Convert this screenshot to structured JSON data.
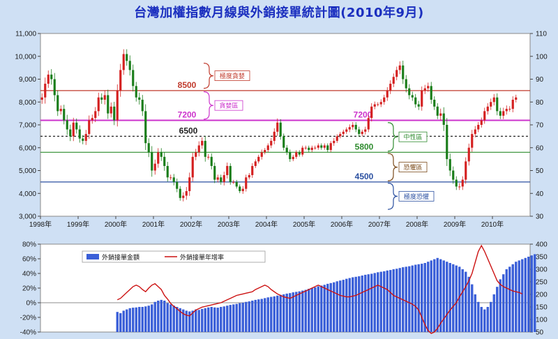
{
  "title": "台灣加權指數月線與外銷接單統計圖(2010年9月)",
  "colors": {
    "background": "#cfe0f4",
    "plot_bg": "#ffffff",
    "candle_up": "#d42020",
    "candle_down": "#1a7d1a",
    "bar": "#3a5fd8",
    "growth_line": "#cc1111",
    "level_8500": "#c0392b",
    "level_7200": "#cc33cc",
    "level_6500": "#222222",
    "level_5800": "#2e8b2e",
    "level_4500": "#2a4fa0",
    "title": "#1b2fbf"
  },
  "chart_data": [
    {
      "type": "candlestick",
      "title": "台灣加權指數月線與外銷接單統計圖(2010年9月)",
      "x_axis": {
        "type": "date",
        "range": [
          "1998-01",
          "2010-12"
        ],
        "tick_labels": [
          "1998年",
          "1999年",
          "2000年",
          "2001年",
          "2002年",
          "2003年",
          "2004年",
          "2005年",
          "2006年",
          "2007年",
          "2008年",
          "2009年",
          "2010年"
        ]
      },
      "y_left": {
        "range": [
          3000,
          11000
        ],
        "tick_labels": [
          "3,000",
          "4,000",
          "5,000",
          "6,000",
          "7,000",
          "8,000",
          "9,000",
          "10,000",
          "11,000"
        ]
      },
      "y_right": {
        "range": [
          30,
          110
        ],
        "tick_labels": [
          "30",
          "40",
          "50",
          "60",
          "70",
          "80",
          "90",
          "100",
          "110"
        ]
      },
      "series": [
        {
          "key": "month_close",
          "start": "1998-01",
          "values": [
            8200,
            8800,
            9200,
            9000,
            8300,
            7600,
            7700,
            7200,
            6800,
            6500,
            7100,
            6800,
            6400,
            6300,
            6600,
            7200,
            7300,
            7600,
            8200,
            8100,
            8300,
            7500,
            7800,
            7200,
            8500,
            9400,
            10100,
            9800,
            9400,
            8700,
            8200,
            8100,
            7600,
            6200,
            5800,
            5000,
            5300,
            5800,
            5600,
            5200,
            4700,
            4700,
            4500,
            4200,
            3800,
            3900,
            4100,
            4700,
            5600,
            5800,
            6100,
            6300,
            5600,
            5600,
            5200,
            4600,
            4700,
            4500,
            4800,
            5200,
            4500,
            4500,
            4300,
            4100,
            4200,
            4700,
            4800,
            5200,
            5400,
            5600,
            5800,
            5900,
            6100,
            6300,
            6700,
            7100,
            6500,
            6000,
            5800,
            5500,
            5600,
            5800,
            5700,
            6000,
            6000,
            5900,
            6000,
            6000,
            6100,
            6000,
            6100,
            5900,
            6200,
            6300,
            6500,
            6600,
            6700,
            6800,
            6900,
            7000,
            6800,
            6600,
            6700,
            6800,
            7300,
            7800,
            7900,
            7900,
            8000,
            8200,
            8500,
            8800,
            9100,
            9400,
            9600,
            9000,
            8600,
            8300,
            8200,
            7900,
            7800,
            8500,
            8600,
            8700,
            8100,
            7800,
            7400,
            7500,
            7000,
            5500,
            5000,
            4600,
            4300,
            4300,
            4600,
            5400,
            6000,
            6600,
            6800,
            7000,
            7200,
            7600,
            7800,
            8000,
            8200,
            7600,
            7400,
            7600,
            7700,
            7700,
            8100,
            8200
          ]
        },
        {
          "key": "month_range",
          "description_values": "high_minus_low_points",
          "values": [
            600,
            900,
            600,
            800,
            900,
            700,
            500,
            600,
            800,
            700,
            700,
            600,
            600,
            500,
            600,
            700,
            500,
            600,
            700,
            600,
            700,
            800,
            600,
            700,
            900,
            900,
            700,
            700,
            800,
            800,
            600,
            700,
            700,
            1000,
            700,
            900,
            600,
            600,
            600,
            700,
            600,
            400,
            500,
            500,
            400,
            500,
            600,
            700,
            600,
            500,
            600,
            500,
            700,
            400,
            500,
            500,
            400,
            400,
            500,
            500,
            400,
            300,
            300,
            300,
            400,
            400,
            300,
            400,
            300,
            300,
            400,
            300,
            300,
            400,
            500,
            600,
            500,
            400,
            400,
            400,
            300,
            300,
            300,
            300,
            300,
            300,
            300,
            300,
            300,
            300,
            300,
            300,
            300,
            400,
            300,
            300,
            300,
            300,
            400,
            400,
            400,
            400,
            300,
            400,
            400,
            500,
            400,
            300,
            400,
            400,
            500,
            500,
            500,
            500,
            600,
            700,
            600,
            600,
            500,
            500,
            500,
            600,
            500,
            500,
            600,
            500,
            500,
            700,
            900,
            1000,
            800,
            600,
            500,
            500,
            500,
            600,
            600,
            600,
            500,
            400,
            400,
            500,
            500,
            500,
            500,
            600,
            500,
            500,
            500,
            400,
            500,
            400
          ]
        }
      ],
      "levels": [
        {
          "value": 8500,
          "label": "8500"
        },
        {
          "value": 7200,
          "label": "7200"
        },
        {
          "value": 6500,
          "label": "6500"
        },
        {
          "value": 5800,
          "label": "5800"
        },
        {
          "value": 4500,
          "label": "4500"
        }
      ],
      "annotations": [
        "極度貪婪",
        "貪婪區",
        "中性區",
        "恐懼區",
        "極度恐懼"
      ]
    },
    {
      "type": "bar+line",
      "x_axis": {
        "type": "date",
        "range": [
          "1998-01",
          "2010-12"
        ]
      },
      "y_left": {
        "range": [
          -40,
          80
        ],
        "tick_labels": [
          "-40%",
          "-20%",
          "0%",
          "20%",
          "40%",
          "60%",
          "80%"
        ]
      },
      "y_right": {
        "range": [
          50,
          400
        ],
        "tick_labels": [
          "50",
          "100",
          "150",
          "200",
          "250",
          "300",
          "350",
          "400"
        ]
      },
      "legend": {
        "placement": "top-left",
        "entries": [
          "外銷接單金額",
          "外銷接單年增率"
        ]
      },
      "series": [
        {
          "name": "外銷接單金額",
          "type": "bar",
          "start": "2000-01",
          "values": [
            130,
            125,
            135,
            140,
            145,
            147,
            148,
            150,
            150,
            152,
            155,
            160,
            170,
            175,
            178,
            175,
            165,
            160,
            155,
            150,
            145,
            140,
            135,
            132,
            135,
            140,
            138,
            142,
            145,
            148,
            150,
            148,
            147,
            150,
            152,
            155,
            158,
            160,
            162,
            165,
            167,
            170,
            172,
            175,
            178,
            180,
            182,
            185,
            188,
            190,
            192,
            195,
            198,
            200,
            203,
            205,
            208,
            210,
            212,
            215,
            218,
            222,
            225,
            228,
            232,
            235,
            238,
            242,
            245,
            248,
            252,
            255,
            258,
            262,
            265,
            268,
            270,
            272,
            275,
            278,
            280,
            282,
            285,
            288,
            290,
            292,
            295,
            297,
            300,
            302,
            305,
            308,
            310,
            312,
            315,
            318,
            320,
            322,
            325,
            330,
            335,
            340,
            345,
            340,
            335,
            330,
            325,
            320,
            315,
            310,
            300,
            290,
            270,
            240,
            200,
            170,
            150,
            140,
            150,
            170,
            200,
            230,
            260,
            280,
            300,
            310,
            320,
            330,
            335,
            340,
            345,
            350,
            355,
            360
          ]
        },
        {
          "name": "外銷接單年增率",
          "type": "line",
          "start": "2000-01",
          "values": [
            4,
            6,
            10,
            14,
            18,
            22,
            24,
            22,
            18,
            15,
            20,
            24,
            26,
            22,
            18,
            10,
            5,
            -1,
            -5,
            -8,
            -12,
            -15,
            -17,
            -18,
            -14,
            -10,
            -8,
            -6,
            -5,
            -4,
            -3,
            -2,
            -1,
            0,
            2,
            4,
            6,
            8,
            10,
            11,
            12,
            13,
            14,
            15,
            18,
            20,
            22,
            24,
            22,
            18,
            15,
            12,
            10,
            8,
            7,
            6,
            8,
            10,
            12,
            14,
            16,
            18,
            20,
            22,
            24,
            22,
            20,
            18,
            16,
            14,
            12,
            10,
            9,
            8,
            8,
            9,
            10,
            12,
            14,
            16,
            18,
            20,
            22,
            24,
            22,
            20,
            18,
            14,
            10,
            8,
            6,
            4,
            2,
            0,
            -2,
            -5,
            -10,
            -20,
            -30,
            -38,
            -42,
            -40,
            -35,
            -28,
            -22,
            -16,
            -10,
            -5,
            0,
            8,
            15,
            22,
            30,
            40,
            55,
            70,
            78,
            70,
            60,
            50,
            40,
            30,
            25,
            22,
            20,
            18,
            16,
            15,
            14,
            12
          ]
        }
      ]
    }
  ]
}
